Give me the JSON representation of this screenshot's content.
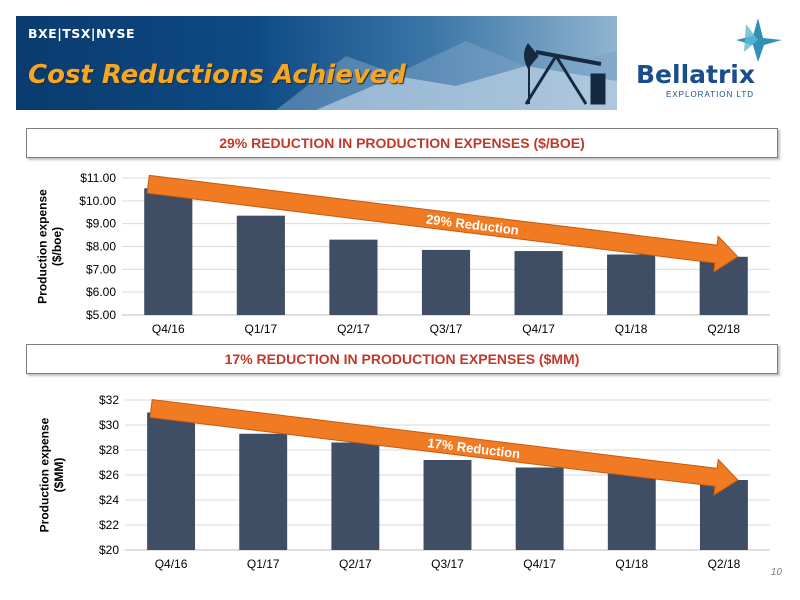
{
  "header": {
    "ticker": "BXE|TSX|NYSE",
    "title": "Cost Reductions Achieved"
  },
  "logo": {
    "name": "Bellatrix",
    "subtitle": "EXPLORATION LTD"
  },
  "page_number": "10",
  "colors": {
    "bar": "#3f4d65",
    "arrow": "#f07b22",
    "title_red": "#c0392b",
    "title_orange": "#f5a623"
  },
  "chart_data": [
    {
      "type": "bar",
      "title": "29% REDUCTION IN PRODUCTION EXPENSES ($/BOE)",
      "ylabel": "Production expense ($/boe)",
      "categories": [
        "Q4/16",
        "Q1/17",
        "Q2/17",
        "Q3/17",
        "Q4/17",
        "Q1/18",
        "Q2/18"
      ],
      "values": [
        10.55,
        9.35,
        8.3,
        7.85,
        7.8,
        7.65,
        7.55
      ],
      "ylim": [
        5,
        11
      ],
      "yticks": [
        "$5.00",
        "$6.00",
        "$7.00",
        "$8.00",
        "$9.00",
        "$10.00",
        "$11.00"
      ],
      "annotation": "29% Reduction",
      "grid": true
    },
    {
      "type": "bar",
      "title": "17% REDUCTION IN PRODUCTION EXPENSES ($MM)",
      "ylabel": "Production expense ($MM)",
      "categories": [
        "Q4/16",
        "Q1/17",
        "Q2/17",
        "Q3/17",
        "Q4/17",
        "Q1/18",
        "Q2/18"
      ],
      "values": [
        31.0,
        29.3,
        28.6,
        27.2,
        26.6,
        26.1,
        25.6
      ],
      "ylim": [
        20,
        32
      ],
      "yticks": [
        "$20",
        "$22",
        "$24",
        "$26",
        "$28",
        "$30",
        "$32"
      ],
      "annotation": "17% Reduction",
      "grid": true
    }
  ]
}
